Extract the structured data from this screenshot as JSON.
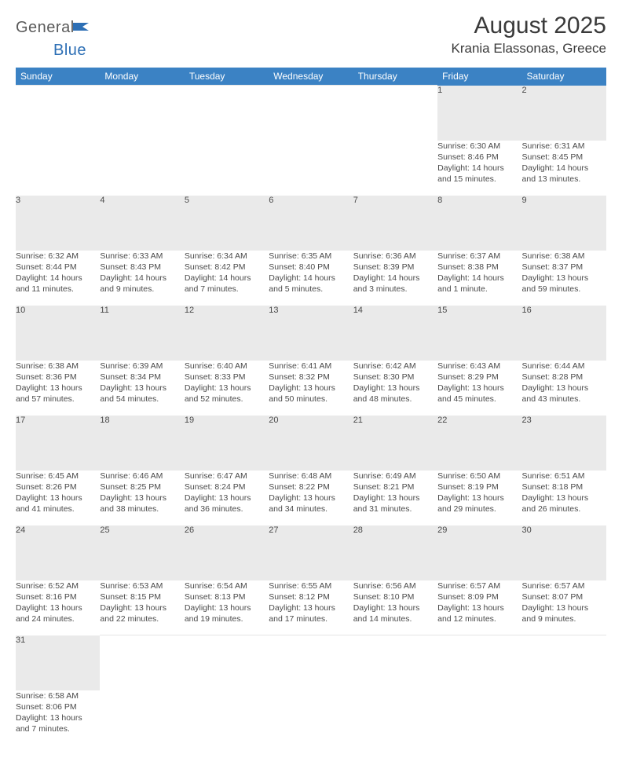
{
  "logo": {
    "word1": "General",
    "word2": "Blue"
  },
  "title": "August 2025",
  "location": "Krania Elassonas, Greece",
  "colors": {
    "header_bg": "#3b82c4",
    "header_text": "#ffffff",
    "daynum_bg": "#eaeaea",
    "text": "#4a4a4a",
    "logo_gray": "#5a5a5a",
    "logo_blue": "#2d6fb5"
  },
  "weekdays": [
    "Sunday",
    "Monday",
    "Tuesday",
    "Wednesday",
    "Thursday",
    "Friday",
    "Saturday"
  ],
  "weeks": [
    [
      null,
      null,
      null,
      null,
      null,
      {
        "n": "1",
        "sr": "Sunrise: 6:30 AM",
        "ss": "Sunset: 8:46 PM",
        "d1": "Daylight: 14 hours",
        "d2": "and 15 minutes."
      },
      {
        "n": "2",
        "sr": "Sunrise: 6:31 AM",
        "ss": "Sunset: 8:45 PM",
        "d1": "Daylight: 14 hours",
        "d2": "and 13 minutes."
      }
    ],
    [
      {
        "n": "3",
        "sr": "Sunrise: 6:32 AM",
        "ss": "Sunset: 8:44 PM",
        "d1": "Daylight: 14 hours",
        "d2": "and 11 minutes."
      },
      {
        "n": "4",
        "sr": "Sunrise: 6:33 AM",
        "ss": "Sunset: 8:43 PM",
        "d1": "Daylight: 14 hours",
        "d2": "and 9 minutes."
      },
      {
        "n": "5",
        "sr": "Sunrise: 6:34 AM",
        "ss": "Sunset: 8:42 PM",
        "d1": "Daylight: 14 hours",
        "d2": "and 7 minutes."
      },
      {
        "n": "6",
        "sr": "Sunrise: 6:35 AM",
        "ss": "Sunset: 8:40 PM",
        "d1": "Daylight: 14 hours",
        "d2": "and 5 minutes."
      },
      {
        "n": "7",
        "sr": "Sunrise: 6:36 AM",
        "ss": "Sunset: 8:39 PM",
        "d1": "Daylight: 14 hours",
        "d2": "and 3 minutes."
      },
      {
        "n": "8",
        "sr": "Sunrise: 6:37 AM",
        "ss": "Sunset: 8:38 PM",
        "d1": "Daylight: 14 hours",
        "d2": "and 1 minute."
      },
      {
        "n": "9",
        "sr": "Sunrise: 6:38 AM",
        "ss": "Sunset: 8:37 PM",
        "d1": "Daylight: 13 hours",
        "d2": "and 59 minutes."
      }
    ],
    [
      {
        "n": "10",
        "sr": "Sunrise: 6:38 AM",
        "ss": "Sunset: 8:36 PM",
        "d1": "Daylight: 13 hours",
        "d2": "and 57 minutes."
      },
      {
        "n": "11",
        "sr": "Sunrise: 6:39 AM",
        "ss": "Sunset: 8:34 PM",
        "d1": "Daylight: 13 hours",
        "d2": "and 54 minutes."
      },
      {
        "n": "12",
        "sr": "Sunrise: 6:40 AM",
        "ss": "Sunset: 8:33 PM",
        "d1": "Daylight: 13 hours",
        "d2": "and 52 minutes."
      },
      {
        "n": "13",
        "sr": "Sunrise: 6:41 AM",
        "ss": "Sunset: 8:32 PM",
        "d1": "Daylight: 13 hours",
        "d2": "and 50 minutes."
      },
      {
        "n": "14",
        "sr": "Sunrise: 6:42 AM",
        "ss": "Sunset: 8:30 PM",
        "d1": "Daylight: 13 hours",
        "d2": "and 48 minutes."
      },
      {
        "n": "15",
        "sr": "Sunrise: 6:43 AM",
        "ss": "Sunset: 8:29 PM",
        "d1": "Daylight: 13 hours",
        "d2": "and 45 minutes."
      },
      {
        "n": "16",
        "sr": "Sunrise: 6:44 AM",
        "ss": "Sunset: 8:28 PM",
        "d1": "Daylight: 13 hours",
        "d2": "and 43 minutes."
      }
    ],
    [
      {
        "n": "17",
        "sr": "Sunrise: 6:45 AM",
        "ss": "Sunset: 8:26 PM",
        "d1": "Daylight: 13 hours",
        "d2": "and 41 minutes."
      },
      {
        "n": "18",
        "sr": "Sunrise: 6:46 AM",
        "ss": "Sunset: 8:25 PM",
        "d1": "Daylight: 13 hours",
        "d2": "and 38 minutes."
      },
      {
        "n": "19",
        "sr": "Sunrise: 6:47 AM",
        "ss": "Sunset: 8:24 PM",
        "d1": "Daylight: 13 hours",
        "d2": "and 36 minutes."
      },
      {
        "n": "20",
        "sr": "Sunrise: 6:48 AM",
        "ss": "Sunset: 8:22 PM",
        "d1": "Daylight: 13 hours",
        "d2": "and 34 minutes."
      },
      {
        "n": "21",
        "sr": "Sunrise: 6:49 AM",
        "ss": "Sunset: 8:21 PM",
        "d1": "Daylight: 13 hours",
        "d2": "and 31 minutes."
      },
      {
        "n": "22",
        "sr": "Sunrise: 6:50 AM",
        "ss": "Sunset: 8:19 PM",
        "d1": "Daylight: 13 hours",
        "d2": "and 29 minutes."
      },
      {
        "n": "23",
        "sr": "Sunrise: 6:51 AM",
        "ss": "Sunset: 8:18 PM",
        "d1": "Daylight: 13 hours",
        "d2": "and 26 minutes."
      }
    ],
    [
      {
        "n": "24",
        "sr": "Sunrise: 6:52 AM",
        "ss": "Sunset: 8:16 PM",
        "d1": "Daylight: 13 hours",
        "d2": "and 24 minutes."
      },
      {
        "n": "25",
        "sr": "Sunrise: 6:53 AM",
        "ss": "Sunset: 8:15 PM",
        "d1": "Daylight: 13 hours",
        "d2": "and 22 minutes."
      },
      {
        "n": "26",
        "sr": "Sunrise: 6:54 AM",
        "ss": "Sunset: 8:13 PM",
        "d1": "Daylight: 13 hours",
        "d2": "and 19 minutes."
      },
      {
        "n": "27",
        "sr": "Sunrise: 6:55 AM",
        "ss": "Sunset: 8:12 PM",
        "d1": "Daylight: 13 hours",
        "d2": "and 17 minutes."
      },
      {
        "n": "28",
        "sr": "Sunrise: 6:56 AM",
        "ss": "Sunset: 8:10 PM",
        "d1": "Daylight: 13 hours",
        "d2": "and 14 minutes."
      },
      {
        "n": "29",
        "sr": "Sunrise: 6:57 AM",
        "ss": "Sunset: 8:09 PM",
        "d1": "Daylight: 13 hours",
        "d2": "and 12 minutes."
      },
      {
        "n": "30",
        "sr": "Sunrise: 6:57 AM",
        "ss": "Sunset: 8:07 PM",
        "d1": "Daylight: 13 hours",
        "d2": "and 9 minutes."
      }
    ],
    [
      {
        "n": "31",
        "sr": "Sunrise: 6:58 AM",
        "ss": "Sunset: 8:06 PM",
        "d1": "Daylight: 13 hours",
        "d2": "and 7 minutes."
      },
      null,
      null,
      null,
      null,
      null,
      null
    ]
  ]
}
